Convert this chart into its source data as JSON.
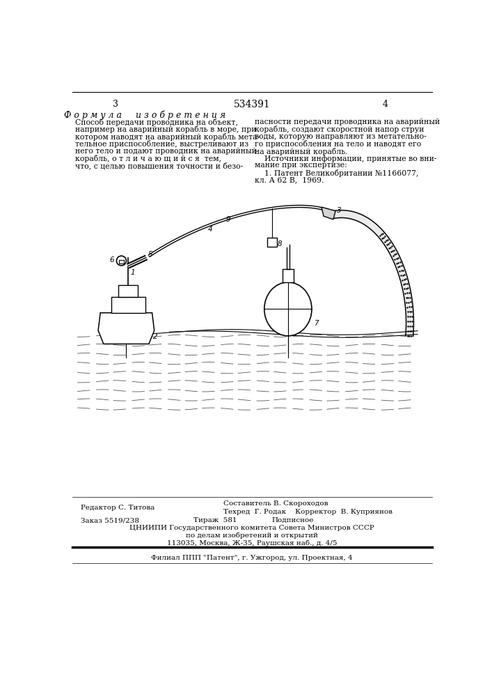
{
  "page_color": "#ffffff",
  "patent_number": "534391",
  "page_left": "3",
  "page_right": "4",
  "header_formula": "Ф о р м у л а     и з о б р е т е н и я",
  "footer_editor": "Редактор С. Титова",
  "footer_compiler": "Составитель В. Скороходов",
  "footer_techred": "Техред  Г. Родак",
  "footer_corrector": "Корректор  В. Куприянов",
  "footer_order": "Заказ 5519/238",
  "footer_circulation": "Тираж  581",
  "footer_subscription": "Подписное",
  "footer_cniip": "ЦНИИПИ Государственного комитета Совета Министров СССР",
  "footer_affairs": "по делам изобретений и открытий",
  "footer_address": "113035, Москва, Ж-35, Раушская наб., д. 4/5",
  "footer_branch": "Филиал ППП \"Патент\", г. Ужгород, ул. Проектная, 4"
}
